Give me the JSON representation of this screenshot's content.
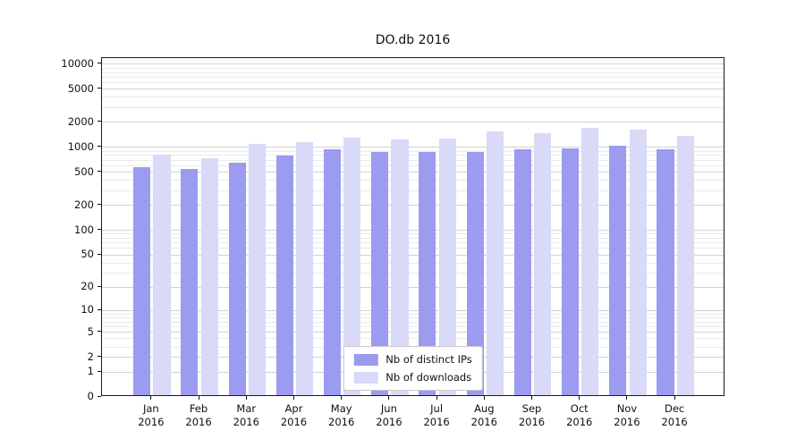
{
  "title": "DO.db 2016",
  "chart_data": {
    "type": "bar",
    "title": "DO.db 2016",
    "categories": [
      "Jan 2016",
      "Feb 2016",
      "Mar 2016",
      "Apr 2016",
      "May 2016",
      "Jun 2016",
      "Jul 2016",
      "Aug 2016",
      "Sep 2016",
      "Oct 2016",
      "Nov 2016",
      "Dec 2016"
    ],
    "series": [
      {
        "name": "Nb of distinct IPs",
        "color": "#9b9bf0",
        "values": [
          550,
          520,
          630,
          770,
          900,
          850,
          850,
          850,
          900,
          930,
          1000,
          900
        ]
      },
      {
        "name": "Nb of downloads",
        "color": "#d9d9f8",
        "values": [
          780,
          700,
          1050,
          1100,
          1250,
          1180,
          1220,
          1500,
          1400,
          1650,
          1550,
          1300
        ]
      }
    ],
    "yscale": "log(1+v)",
    "yticks": [
      0,
      1,
      2,
      5,
      10,
      20,
      50,
      100,
      200,
      500,
      1000,
      2000,
      5000,
      10000
    ],
    "ylim": [
      0,
      12000
    ],
    "grid": "horizontal-major-minor",
    "legend_position": "lower center inside"
  }
}
